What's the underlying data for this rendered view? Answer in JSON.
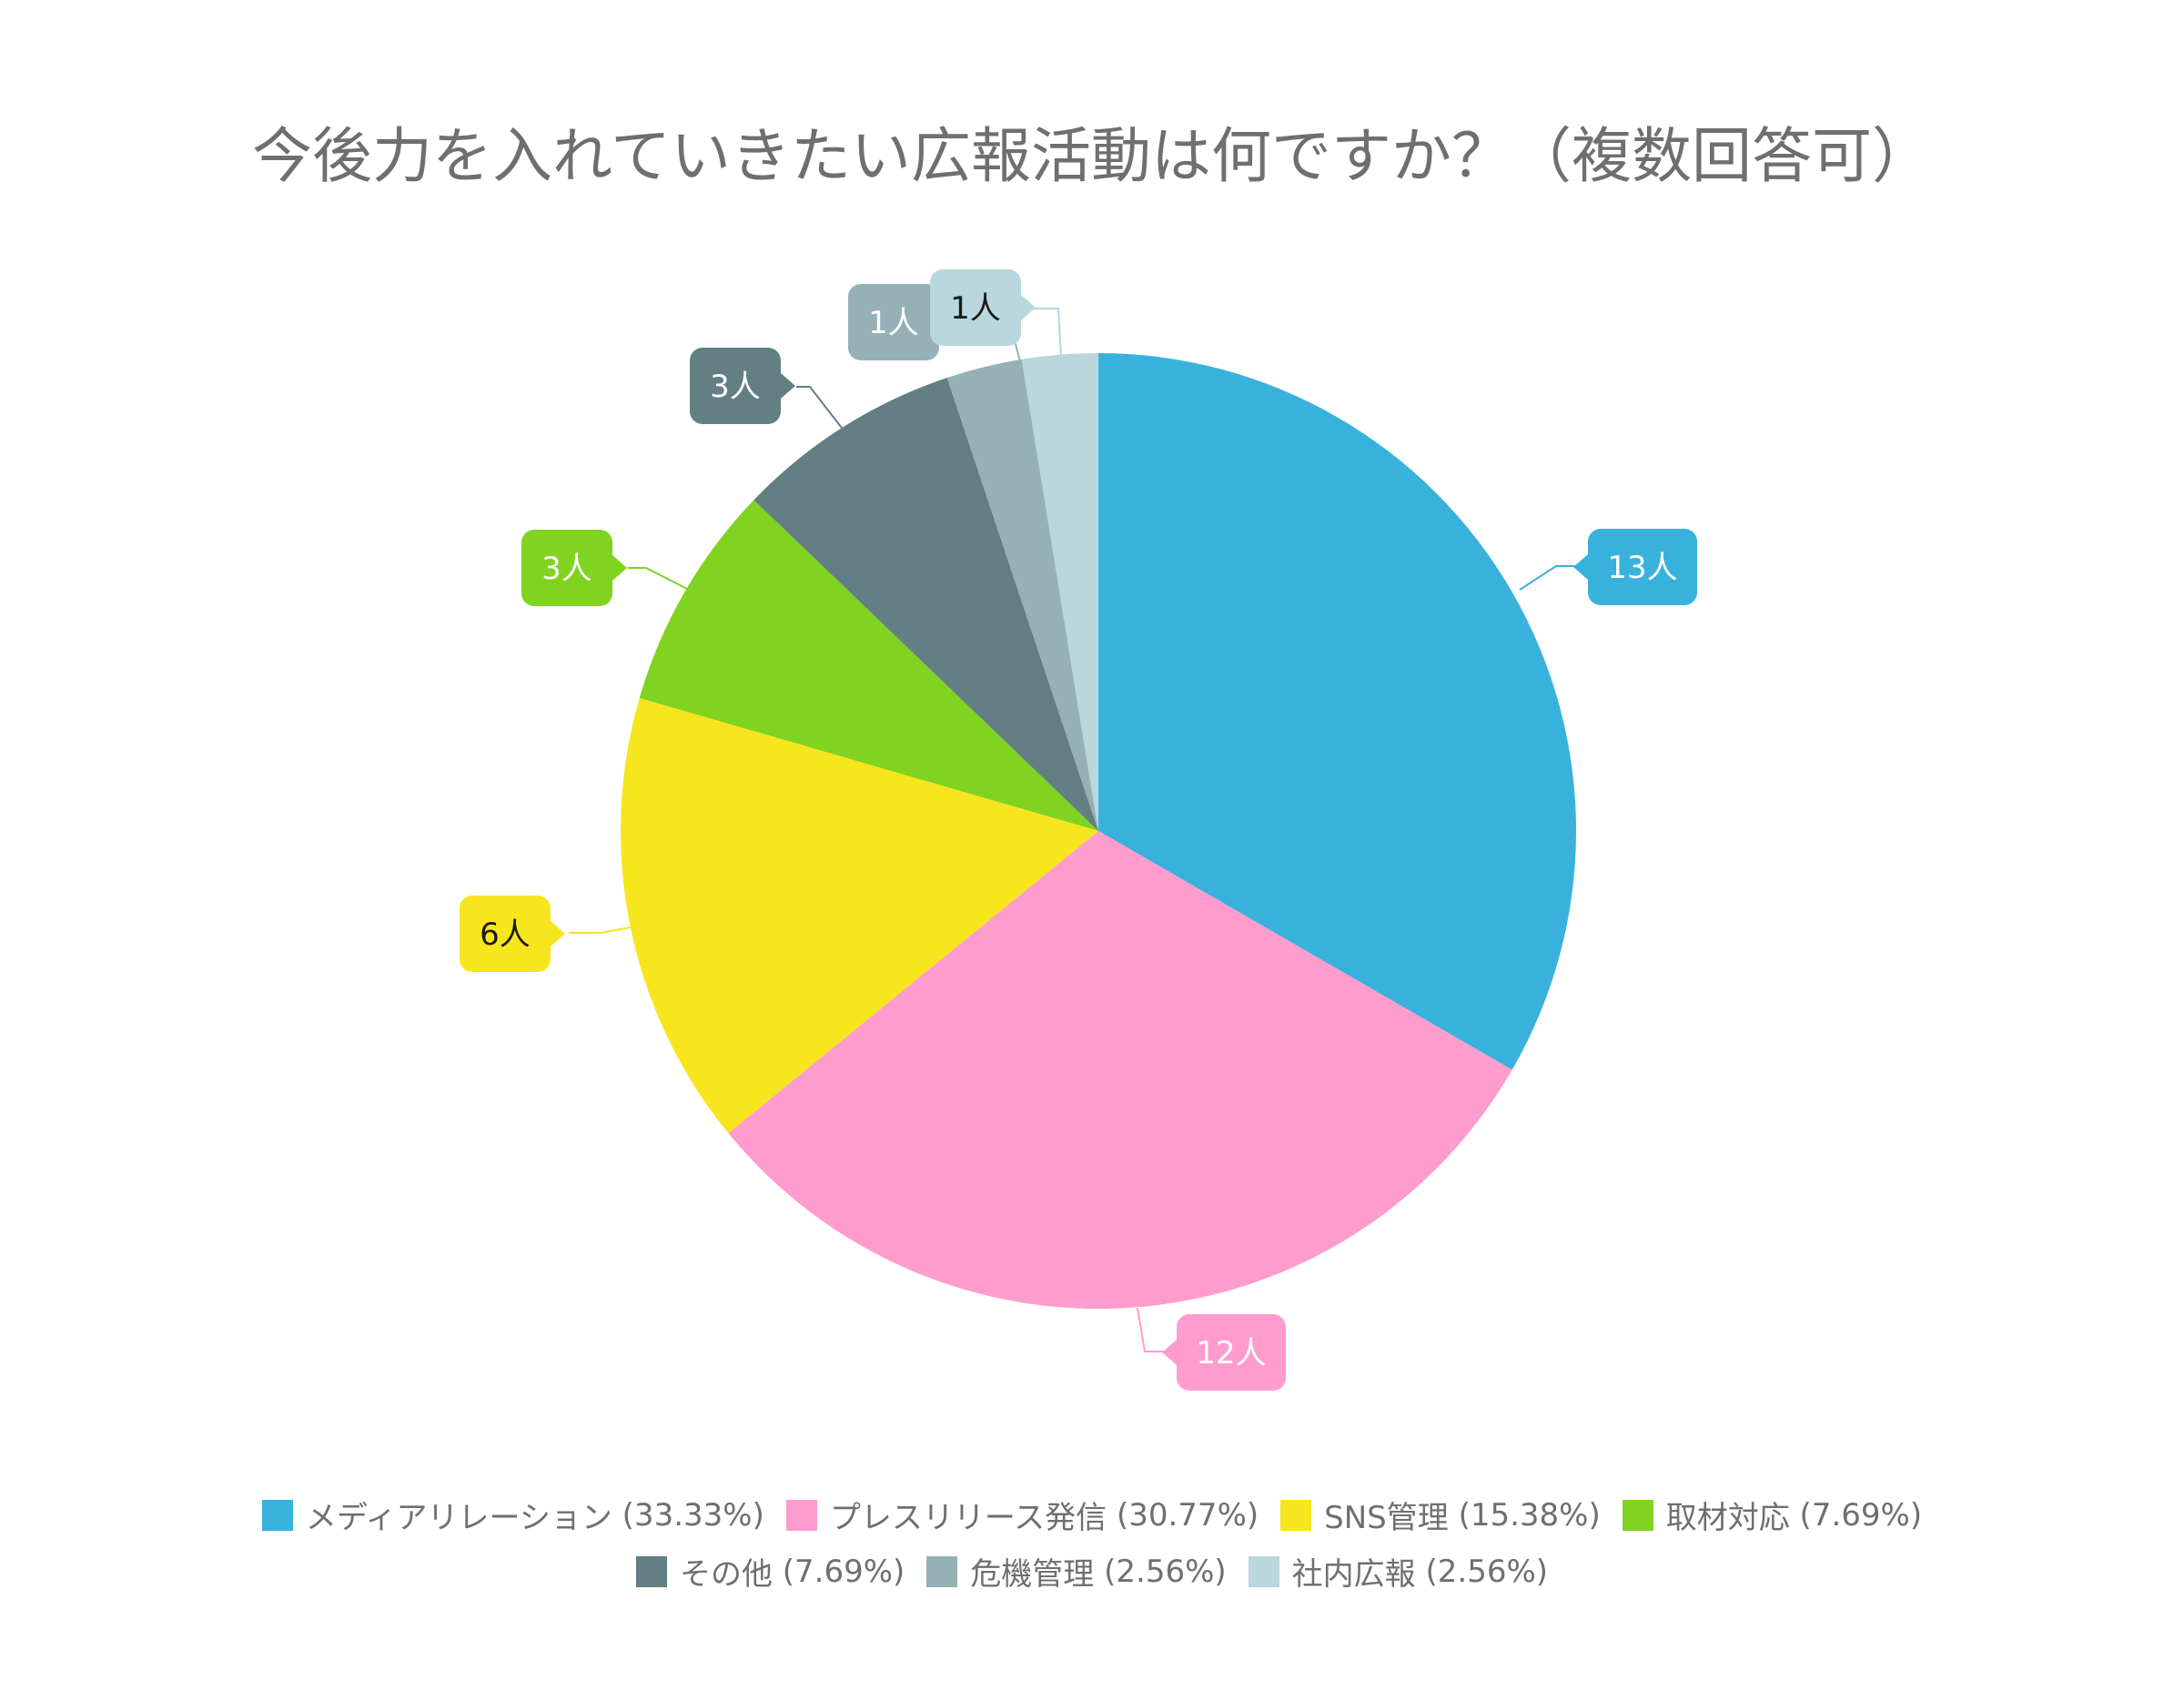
{
  "chart_data": {
    "type": "pie",
    "title": "今後力を入れていきたい広報活動は何ですか？（複数回答可）",
    "slices": [
      {
        "label": "メディアリレーション",
        "value": 13,
        "value_label": "13人",
        "percent_label": "(33.33%)",
        "color": "#38b2dc",
        "label_text_color": "#ffffff"
      },
      {
        "label": "プレスリリース発信",
        "value": 12,
        "value_label": "12人",
        "percent_label": "(30.77%)",
        "color": "#fe9dcd",
        "label_text_color": "#ffffff"
      },
      {
        "label": "SNS管理",
        "value": 6,
        "value_label": "6人",
        "percent_label": "(15.38%)",
        "color": "#f7e51e",
        "label_text_color": "#1a1a1a"
      },
      {
        "label": "取材対応",
        "value": 3,
        "value_label": "3人",
        "percent_label": "(7.69%)",
        "color": "#80d320",
        "label_text_color": "#ffffff"
      },
      {
        "label": "その他",
        "value": 3,
        "value_label": "3人",
        "percent_label": "(7.69%)",
        "color": "#637f83",
        "label_text_color": "#ffffff"
      },
      {
        "label": "危機管理",
        "value": 1,
        "value_label": "1人",
        "percent_label": "(2.56%)",
        "color": "#95b1b6",
        "label_text_color": "#ffffff"
      },
      {
        "label": "社内広報",
        "value": 1,
        "value_label": "1人",
        "percent_label": "(2.56%)",
        "color": "#b9d7dc",
        "label_text_color": "#1a1a1a"
      }
    ],
    "legend_position": "bottom"
  }
}
